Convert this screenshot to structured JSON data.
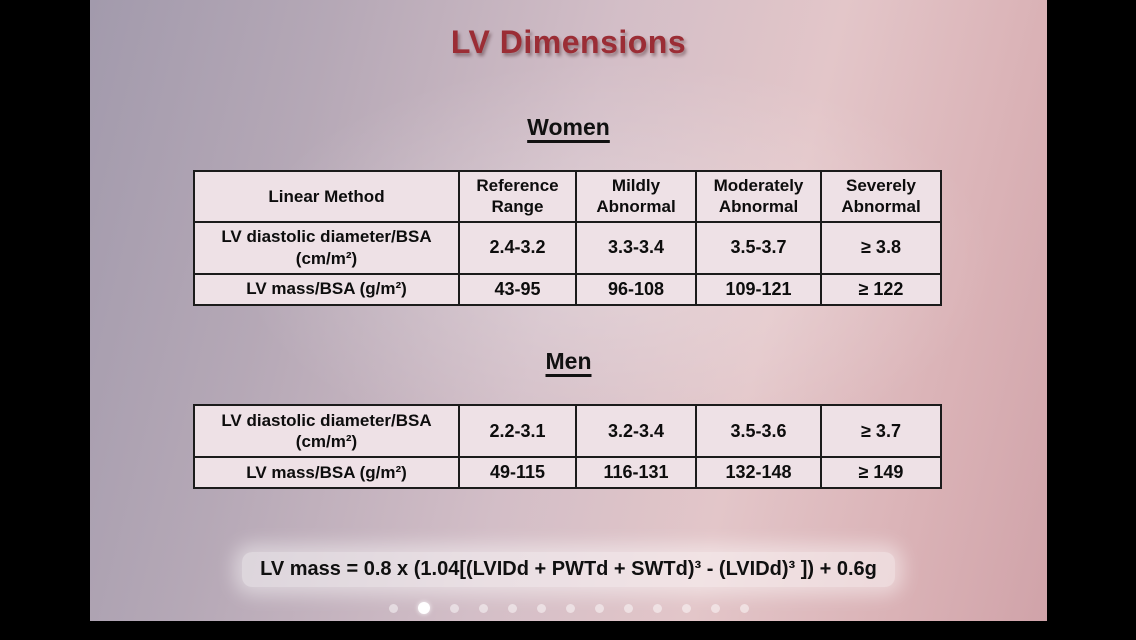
{
  "slide": {
    "title": "LV Dimensions",
    "sections": [
      {
        "heading": "Women",
        "headers": [
          "Linear Method",
          "Reference Range",
          "Mildly Abnormal",
          "Moderately Abnormal",
          "Severely Abnormal"
        ],
        "rows": [
          {
            "label": "LV diastolic diameter/BSA (cm/m²)",
            "values": [
              "2.4-3.2",
              "3.3-3.4",
              "3.5-3.7",
              "≥ 3.8"
            ]
          },
          {
            "label": "LV mass/BSA (g/m²)",
            "values": [
              "43-95",
              "96-108",
              "109-121",
              "≥ 122"
            ]
          }
        ]
      },
      {
        "heading": "Men",
        "rows": [
          {
            "label": "LV diastolic diameter/BSA (cm/m²)",
            "values": [
              "2.2-3.1",
              "3.2-3.4",
              "3.5-3.6",
              "≥ 3.7"
            ]
          },
          {
            "label": "LV mass/BSA (g/m²)",
            "values": [
              "49-115",
              "116-131",
              "132-148",
              "≥ 149"
            ]
          }
        ]
      }
    ],
    "formula": "LV mass = 0.8 x (1.04[(LVIDd + PWTd + SWTd)³ - (LVIDd)³ ]) + 0.6g",
    "colors": {
      "title": "#9b2d35",
      "table_cell_bg": "#eee1e6",
      "table_border": "#1b1b1b",
      "active_dot": "#ffffff"
    }
  },
  "pagination": {
    "dot_count": 13,
    "active_index": 1
  }
}
